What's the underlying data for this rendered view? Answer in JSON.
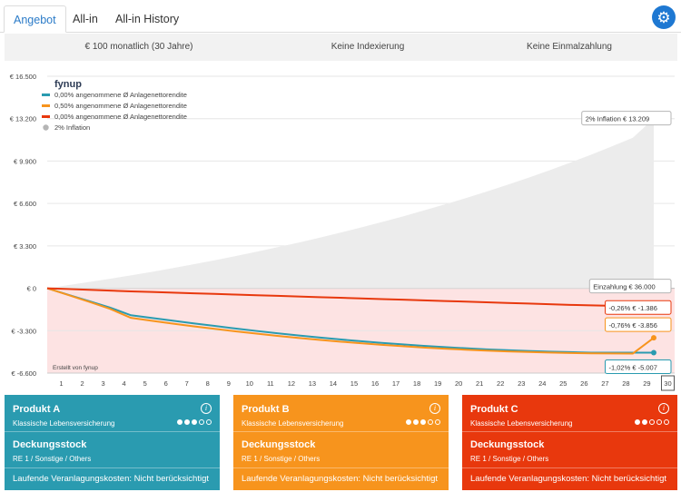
{
  "tabs": [
    {
      "label": "Angebot",
      "active": true
    },
    {
      "label": "All-in",
      "active": false
    },
    {
      "label": "All-in History",
      "active": false
    }
  ],
  "settings_icon": "gear-icon",
  "summary": {
    "monthly": "€ 100 monatlich (30 Jahre)",
    "indexing": "Keine Indexierung",
    "single_payment": "Keine Einmalzahlung"
  },
  "chart_data": {
    "type": "line",
    "brand": "fynup",
    "credit": "Erstellt von fynup",
    "x": [
      1,
      2,
      3,
      4,
      5,
      6,
      7,
      8,
      9,
      10,
      11,
      12,
      13,
      14,
      15,
      16,
      17,
      18,
      19,
      20,
      21,
      22,
      23,
      24,
      25,
      26,
      27,
      28,
      29,
      30
    ],
    "x_selected": 30,
    "y_ticks": [
      "€ 16.500",
      "€ 13.200",
      "€ 9.900",
      "€ 6.600",
      "€ 3.300",
      "€ 0",
      "€ -3.300",
      "€ -6.600"
    ],
    "y_tick_values": [
      16500,
      13200,
      9900,
      6600,
      3300,
      0,
      -3300,
      -6600
    ],
    "ylim": [
      -6600,
      16500
    ],
    "legend": [
      {
        "label": "0,00% angenommene Ø Anlagenettorendite",
        "color": "#2a9bb0"
      },
      {
        "label": "0,50% angenommene Ø Anlagenettorendite",
        "color": "#f7941d"
      },
      {
        "label": "0,00% angenommene Ø Anlagenettorendite",
        "color": "#e8380d"
      },
      {
        "label": "2% Inflation",
        "color": "#b5b5b5"
      }
    ],
    "series": [
      {
        "name": "0,00% angenommene Ø Anlagenettorendite",
        "color": "#2a9bb0",
        "values": [
          0,
          -500,
          -1000,
          -1500,
          -2100,
          -2310,
          -2520,
          -2730,
          -2930,
          -3130,
          -3320,
          -3500,
          -3670,
          -3830,
          -3980,
          -4120,
          -4250,
          -4370,
          -4480,
          -4580,
          -4670,
          -4750,
          -4820,
          -4880,
          -4930,
          -4970,
          -5007,
          -5007,
          -5007,
          -5007
        ]
      },
      {
        "name": "0,50% angenommene Ø Anlagenettorendite",
        "color": "#f7941d",
        "values": [
          0,
          -520,
          -1050,
          -1600,
          -2300,
          -2530,
          -2750,
          -2960,
          -3160,
          -3350,
          -3530,
          -3700,
          -3860,
          -4010,
          -4150,
          -4280,
          -4400,
          -4510,
          -4610,
          -4700,
          -4780,
          -4850,
          -4910,
          -4960,
          -5000,
          -5040,
          -5060,
          -5070,
          -5080,
          -3856
        ]
      },
      {
        "name": "0,00% angenommene Ø Anlagenettorendite",
        "color": "#e8380d",
        "values": [
          0,
          -60,
          -120,
          -180,
          -240,
          -290,
          -340,
          -390,
          -440,
          -490,
          -540,
          -590,
          -640,
          -690,
          -740,
          -790,
          -840,
          -890,
          -940,
          -990,
          -1040,
          -1090,
          -1140,
          -1190,
          -1240,
          -1290,
          -1330,
          -1360,
          -1380,
          -1386
        ]
      },
      {
        "name": "2% Inflation",
        "color": "#b5b5b5",
        "values": [
          0,
          240,
          490,
          740,
          1000,
          1280,
          1570,
          1870,
          2180,
          2500,
          2840,
          3190,
          3550,
          3930,
          4320,
          4730,
          5150,
          5590,
          6050,
          6520,
          7010,
          7520,
          8050,
          8600,
          9170,
          9770,
          10390,
          11040,
          11710,
          13209
        ]
      }
    ],
    "tooltips": [
      {
        "label": "2% Inflation € 13.209",
        "color": "#b5b5b5"
      },
      {
        "label": "Einzahlung € 36.000",
        "color": "#b5b5b5"
      },
      {
        "label": "-0,26% € -1.386",
        "color": "#e8380d"
      },
      {
        "label": "-0,76% € -3.856",
        "color": "#f7941d"
      },
      {
        "label": "-1,02% € -5.007",
        "color": "#2a9bb0"
      }
    ]
  },
  "products": [
    {
      "name": "Produkt A",
      "type": "Klassische Lebensversicherung",
      "rating": 3,
      "rating_max": 5,
      "fund": "Deckungsstock",
      "fund_sub": "RE 1 / Sonstige / Others",
      "costs": "Laufende Veranlagungskosten: Nicht berücksichtigt",
      "color": "#2a9bb0"
    },
    {
      "name": "Produkt B",
      "type": "Klassische Lebensversicherung",
      "rating": 3,
      "rating_max": 5,
      "fund": "Deckungsstock",
      "fund_sub": "RE 1 / Sonstige / Others",
      "costs": "Laufende Veranlagungskosten: Nicht berücksichtigt",
      "color": "#f7941d"
    },
    {
      "name": "Produkt C",
      "type": "Klassische Lebensversicherung",
      "rating": 2,
      "rating_max": 5,
      "fund": "Deckungsstock",
      "fund_sub": "RE 1 / Sonstige / Others",
      "costs": "Laufende Veranlagungskosten: Nicht berücksichtigt",
      "color": "#e8380d"
    }
  ]
}
